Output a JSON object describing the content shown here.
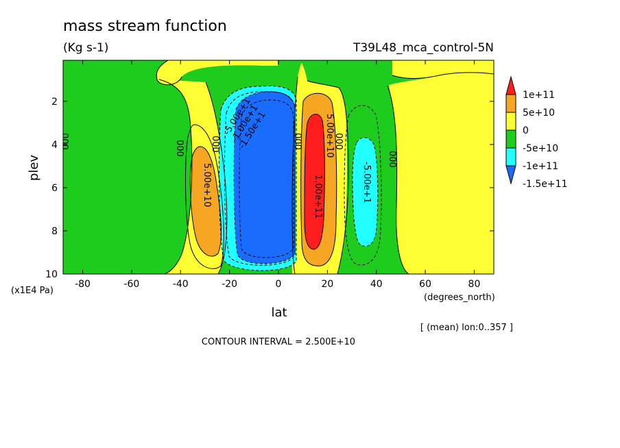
{
  "chart_data": {
    "type": "heatmap",
    "title": "mass stream function",
    "units": "(Kg s-1)",
    "experiment": "T39L48_mca_control-5N",
    "xlabel": "lat",
    "ylabel": "plev",
    "x_units": "(degrees_north)",
    "y_units": "(x1E4 Pa)",
    "x_ticks": [
      -80,
      -60,
      -40,
      -20,
      0,
      20,
      40,
      60,
      80
    ],
    "x_tick_labels": [
      "-80",
      "-60",
      "-40",
      "-20",
      "0",
      "20",
      "40",
      "60",
      "80"
    ],
    "y_ticks": [
      2,
      4,
      6,
      8,
      10
    ],
    "y_tick_labels": [
      "2",
      "4",
      "6",
      "8",
      "10"
    ],
    "xlim": [
      -88,
      88
    ],
    "ylim": [
      0.1,
      10
    ],
    "y_inverted": true,
    "average_note": "[ (mean) lon:0..357 ]",
    "contour_interval_note": "CONTOUR INTERVAL = 2.500E+10",
    "colorbar": {
      "ticks": [
        "1e+11",
        "5e+10",
        "0",
        "-5e+10",
        "-1e+11",
        "-1.5e+11"
      ],
      "levels": [
        {
          "min": 100000000000.0,
          "color": "#ff1e1e"
        },
        {
          "min": 50000000000.0,
          "max": 100000000000.0,
          "color": "#f5a623"
        },
        {
          "min": 0,
          "max": 50000000000.0,
          "color": "#ffff33"
        },
        {
          "min": -50000000000.0,
          "max": 0,
          "color": "#1ecc1e"
        },
        {
          "min": -100000000000.0,
          "max": -50000000000.0,
          "color": "#22ffff"
        },
        {
          "max": -100000000000.0,
          "color": "#1a6cff"
        }
      ]
    },
    "cells": [
      {
        "name": "southern-positive-cell",
        "center_lat": -32,
        "center_plev": 6.5,
        "peak": 75000000000.0
      },
      {
        "name": "southern-hadley-cell-negative",
        "center_lat": -6,
        "center_plev": 5.5,
        "peak": -160000000000.0
      },
      {
        "name": "northern-hadley-cell-positive",
        "center_lat": 14,
        "center_plev": 5.5,
        "peak": 130000000000.0
      },
      {
        "name": "northern-ferrel-cell-negative",
        "center_lat": 35,
        "center_plev": 6.5,
        "peak": -80000000000.0
      }
    ],
    "contour_labels": [
      "5.00e+10",
      "-5.00e+1",
      "-1.00e+1",
      "-1.50e+1",
      "5.00e+10",
      "1.00e+11",
      "-5.00e+1",
      "000",
      "000",
      "000",
      "000",
      "000",
      "000"
    ]
  }
}
